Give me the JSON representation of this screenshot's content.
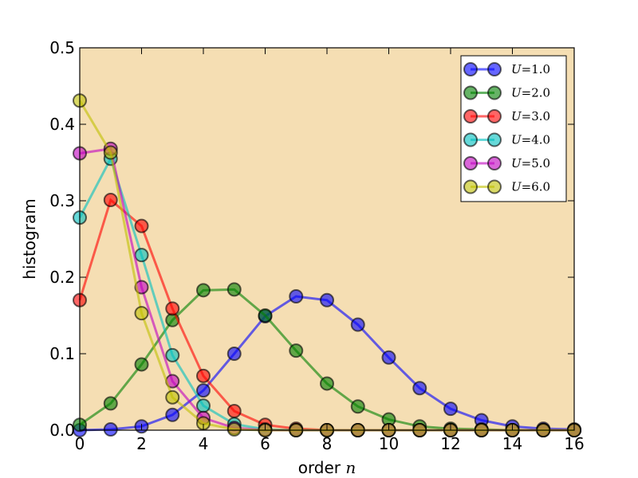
{
  "chart_data": {
    "type": "line",
    "title": "",
    "xlabel": "order",
    "xlabel_var": "n",
    "ylabel": "histogram",
    "xlim": [
      0,
      16
    ],
    "ylim": [
      0,
      0.5
    ],
    "xticks": [
      "0",
      "2",
      "4",
      "6",
      "8",
      "10",
      "12",
      "14",
      "16"
    ],
    "yticks": [
      "0.0",
      "0.1",
      "0.2",
      "0.3",
      "0.4",
      "0.5"
    ],
    "background": "#f5deb3",
    "grid": false,
    "legend_placement": "top-right",
    "x": [
      0,
      1,
      2,
      3,
      4,
      5,
      6,
      7,
      8,
      9,
      10,
      11,
      12,
      13,
      14,
      15,
      16
    ],
    "series": [
      {
        "name": "U=1.0",
        "var": "U",
        "value": "1.0",
        "color": "#0000ff",
        "values": [
          0.0,
          0.001,
          0.005,
          0.02,
          0.052,
          0.1,
          0.149,
          0.175,
          0.17,
          0.138,
          0.095,
          0.055,
          0.028,
          0.013,
          0.005,
          0.002,
          0.001
        ]
      },
      {
        "name": "U=2.0",
        "var": "U",
        "value": "2.0",
        "color": "#008000",
        "values": [
          0.007,
          0.035,
          0.086,
          0.144,
          0.183,
          0.184,
          0.15,
          0.104,
          0.061,
          0.031,
          0.014,
          0.005,
          0.002,
          0.001,
          0.0,
          0.0,
          0.0
        ]
      },
      {
        "name": "U=3.0",
        "var": "U",
        "value": "3.0",
        "color": "#ff0000",
        "values": [
          0.17,
          0.301,
          0.267,
          0.159,
          0.071,
          0.025,
          0.007,
          0.002,
          0.0,
          0.0,
          0.0,
          0.0,
          0.0,
          0.0,
          0.0,
          0.0,
          0.0
        ]
      },
      {
        "name": "U=4.0",
        "var": "U",
        "value": "4.0",
        "color": "#00bfbf",
        "values": [
          0.278,
          0.355,
          0.229,
          0.098,
          0.032,
          0.008,
          0.001,
          0.0,
          0.0,
          0.0,
          0.0,
          0.0,
          0.0,
          0.0,
          0.0,
          0.0,
          0.0
        ]
      },
      {
        "name": "U=5.0",
        "var": "U",
        "value": "5.0",
        "color": "#bf00bf",
        "values": [
          0.362,
          0.368,
          0.187,
          0.064,
          0.016,
          0.003,
          0.0,
          0.0,
          0.0,
          0.0,
          0.0,
          0.0,
          0.0,
          0.0,
          0.0,
          0.0,
          0.0
        ]
      },
      {
        "name": "U=6.0",
        "var": "U",
        "value": "6.0",
        "color": "#bfbf00",
        "values": [
          0.431,
          0.363,
          0.153,
          0.043,
          0.009,
          0.001,
          0.0,
          0.0,
          0.0,
          0.0,
          0.0,
          0.0,
          0.0,
          0.0,
          0.0,
          0.0,
          0.0
        ]
      }
    ]
  }
}
